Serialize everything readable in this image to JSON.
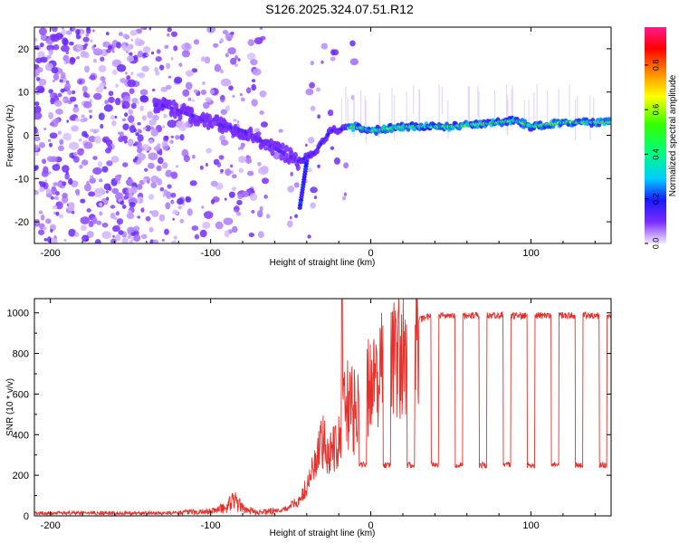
{
  "title": "S126.2025.324.07.51.R12",
  "chart_data": [
    {
      "type": "heatmap",
      "xlabel": "Height of straight line (km)",
      "ylabel": "Frequency (Hz)",
      "xlim": [
        -210,
        150
      ],
      "ylim": [
        -25,
        25
      ],
      "x_ticks": [
        -200,
        -100,
        0,
        100
      ],
      "y_ticks": [
        -20,
        -10,
        0,
        10,
        20
      ],
      "colorbar": {
        "label": "Normalized spectral amplitude",
        "range": [
          0,
          0.97
        ],
        "ticks": [
          0.0,
          0.2,
          0.4,
          0.6,
          0.8
        ]
      },
      "ridge": {
        "description_points_x": [
          -130,
          -100,
          -80,
          -60,
          -45,
          -35,
          -25,
          -10,
          0,
          20,
          50,
          80,
          90,
          100,
          120,
          150
        ],
        "description_points_y": [
          7,
          3,
          1,
          -3,
          -6,
          -4,
          1,
          2,
          1,
          2,
          2,
          3,
          3.5,
          2,
          3,
          3
        ]
      }
    },
    {
      "type": "line",
      "xlabel": "Height of straight line (km)",
      "ylabel": "SNR (10 * v/v)",
      "xlim": [
        -210,
        150
      ],
      "ylim": [
        0,
        1070
      ],
      "x_ticks": [
        -200,
        -100,
        0,
        100
      ],
      "y_ticks": [
        0,
        200,
        400,
        600,
        800,
        1000
      ],
      "color": "#e8302a",
      "envelope_x": [
        -210,
        -130,
        -100,
        -90,
        -85,
        -80,
        -70,
        -55,
        -45,
        -40,
        -35,
        -30,
        -25,
        -20,
        -15,
        -10,
        -5,
        0,
        5,
        10,
        20,
        25,
        30,
        40,
        150
      ],
      "envelope_y": [
        15,
        15,
        25,
        50,
        90,
        40,
        20,
        30,
        80,
        150,
        280,
        380,
        350,
        420,
        600,
        550,
        650,
        700,
        750,
        800,
        850,
        950,
        970,
        990,
        990
      ],
      "dropouts_x": [
        -5,
        10,
        25,
        40,
        55,
        70,
        85,
        100,
        115,
        130,
        145
      ],
      "dropout_level": 250
    }
  ]
}
